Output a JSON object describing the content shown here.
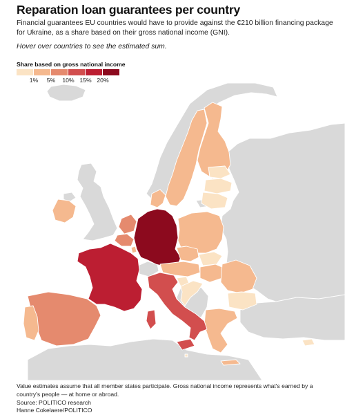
{
  "title": "Reparation loan guarantees per country",
  "subtitle": "Financial guarantees EU countries would have to provide against the €210 billion financing package for Ukraine, as a share based on their gross national income (GNI).",
  "hint": "Hover over countries to see the estimated sum.",
  "legend": {
    "title": "Share based on gross national income",
    "bins": [
      {
        "label": "",
        "color": "#fbe3c4"
      },
      {
        "label": "1%",
        "color": "#f5b98f"
      },
      {
        "label": "5%",
        "color": "#e58a6e"
      },
      {
        "label": "10%",
        "color": "#d24e4e"
      },
      {
        "label": "15%",
        "color": "#bc1e32"
      },
      {
        "label": "20%",
        "color": "#8c0a1e"
      }
    ]
  },
  "colors": {
    "non_eu": "#d9d9d9",
    "sea": "#ffffff",
    "border": "#ffffff"
  },
  "map": {
    "countries": [
      {
        "name": "Germany",
        "bin": 5
      },
      {
        "name": "France",
        "bin": 4
      },
      {
        "name": "Italy",
        "bin": 3
      },
      {
        "name": "Spain",
        "bin": 2
      },
      {
        "name": "Netherlands",
        "bin": 2
      },
      {
        "name": "Belgium",
        "bin": 2
      },
      {
        "name": "Poland",
        "bin": 1
      },
      {
        "name": "Sweden",
        "bin": 1
      },
      {
        "name": "Ireland",
        "bin": 1
      },
      {
        "name": "Austria",
        "bin": 1
      },
      {
        "name": "Denmark",
        "bin": 1
      },
      {
        "name": "Finland",
        "bin": 1
      },
      {
        "name": "Portugal",
        "bin": 1
      },
      {
        "name": "Czechia",
        "bin": 1
      },
      {
        "name": "Romania",
        "bin": 1
      },
      {
        "name": "Greece",
        "bin": 1
      },
      {
        "name": "Hungary",
        "bin": 1
      },
      {
        "name": "Slovakia",
        "bin": 0
      },
      {
        "name": "Bulgaria",
        "bin": 0
      },
      {
        "name": "Croatia",
        "bin": 0
      },
      {
        "name": "Slovenia",
        "bin": 0
      },
      {
        "name": "Lithuania",
        "bin": 0
      },
      {
        "name": "Latvia",
        "bin": 0
      },
      {
        "name": "Estonia",
        "bin": 0
      },
      {
        "name": "Luxembourg",
        "bin": 1
      },
      {
        "name": "Cyprus",
        "bin": 0
      },
      {
        "name": "Malta",
        "bin": 0
      }
    ],
    "non_eu": [
      "Norway",
      "United Kingdom",
      "Iceland",
      "Switzerland",
      "Belarus",
      "Ukraine",
      "Russia",
      "Moldova",
      "Serbia",
      "Bosnia and Herzegovina",
      "Montenegro",
      "Albania",
      "North Macedonia",
      "Turkey",
      "Morocco",
      "Algeria",
      "Tunisia",
      "Libya"
    ]
  },
  "footer": {
    "note": "Value estimates assume that all member states participate. Gross national income represents what's earned by a country's people — at home or abroad.",
    "source": "Source: POLITICO research",
    "credit": "Hanne Cokelaere/POLITICO"
  }
}
